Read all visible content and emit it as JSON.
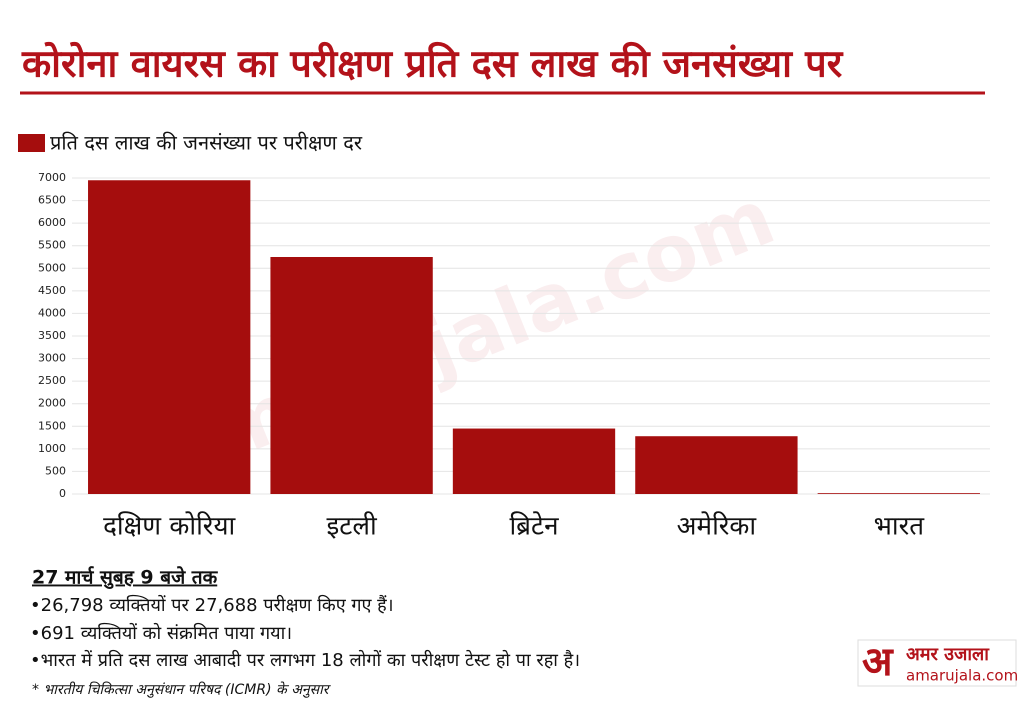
{
  "chart_data": {
    "type": "bar",
    "title": "कोरोना वायरस का परीक्षण प्रति दस लाख की जनसंख्या पर",
    "series": [
      {
        "name": "प्रति दस लाख की जनसंख्या पर परीक्षण दर",
        "color": "#a50d0d",
        "values": [
          6950,
          5250,
          1450,
          1280,
          18
        ]
      }
    ],
    "categories": [
      "दक्षिण कोरिया",
      "इटली",
      "ब्रिटेन",
      "अमेरिका",
      "भारत"
    ],
    "ylim": [
      0,
      7000
    ],
    "yticks": [
      0,
      500,
      1000,
      1500,
      2000,
      2500,
      3000,
      3500,
      4000,
      4500,
      5000,
      5500,
      6000,
      6500,
      7000
    ],
    "grid": true
  },
  "notes": {
    "heading": "27 मार्च सुबह 9 बजे तक",
    "lines": [
      "•26,798 व्यक्तियों पर 27,688 परीक्षण किए गए हैं।",
      "•691 व्यक्तियों को संक्रमित पाया गया।",
      "•भारत में प्रति दस लाख आबादी पर लगभग 18 लोगों का परीक्षण टेस्ट हो पा रहा है।"
    ],
    "source": "* भारतीय चिकित्सा अनुसंधान परिषद (ICMR) के अनुसार"
  },
  "watermark": "amarujala.com",
  "logo": {
    "mark": "अ",
    "name": "अमर उजाला",
    "url": "amarujala.com"
  }
}
